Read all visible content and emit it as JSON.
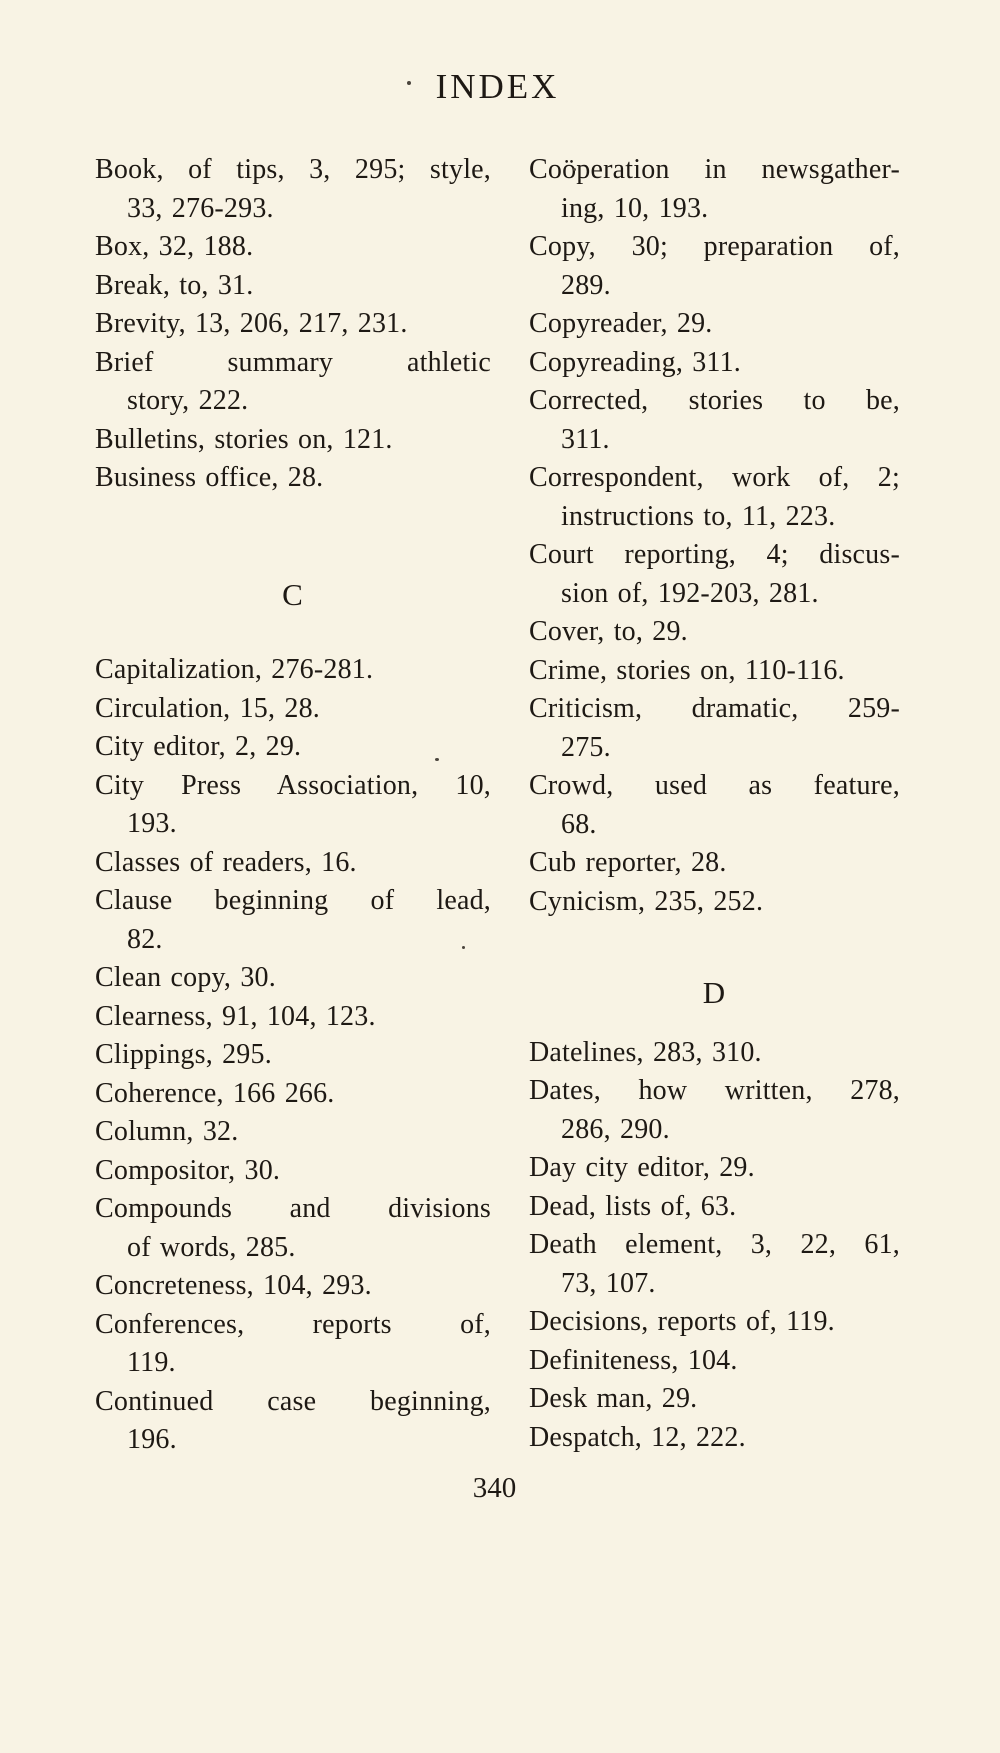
{
  "page": {
    "title": "INDEX",
    "page_number": "340"
  },
  "index": {
    "columns": [
      {
        "id": "left",
        "sections": [
          {
            "heading": "",
            "entries": [
              [
                "Book, of tips, 3, 295; style,",
                "33, 276-293."
              ],
              [
                "Box, 32, 188."
              ],
              [
                "Break, to, 31."
              ],
              [
                "Brevity, 13, 206, 217, 231."
              ],
              [
                "Brief summary athletic",
                "story, 222."
              ],
              [
                "Bulletins, stories on, 121."
              ],
              [
                "Business office, 28."
              ]
            ]
          },
          {
            "heading": "C",
            "entries": [
              [
                "Capitalization, 276-281."
              ],
              [
                "Circulation, 15, 28."
              ],
              [
                "City editor, 2, 29."
              ],
              [
                "City Press Association, 10,",
                "193."
              ],
              [
                "Classes of readers, 16."
              ],
              [
                "Clause beginning of lead,",
                "82."
              ],
              [
                "Clean copy, 30."
              ],
              [
                "Clearness, 91, 104, 123."
              ],
              [
                "Clippings, 295."
              ],
              [
                "Coherence, 166 266."
              ],
              [
                "Column, 32."
              ],
              [
                "Compositor, 30."
              ],
              [
                "Compounds and divisions",
                "of words, 285."
              ],
              [
                "Concreteness, 104, 293."
              ],
              [
                "Conferences, reports of,",
                "119."
              ],
              [
                "Continued case beginning,",
                "196."
              ]
            ]
          }
        ]
      },
      {
        "id": "right",
        "sections": [
          {
            "heading": "",
            "entries": [
              [
                "Coöperation in newsgather-",
                "ing, 10, 193."
              ],
              [
                "Copy, 30; preparation of,",
                "289."
              ],
              [
                "Copyreader, 29."
              ],
              [
                "Copyreading, 311."
              ],
              [
                "Corrected, stories to be,",
                "311."
              ],
              [
                "Correspondent, work of, 2;",
                "instructions to, 11, 223."
              ],
              [
                "Court reporting, 4; discus-",
                "sion of, 192-203, 281."
              ],
              [
                "Cover, to, 29."
              ],
              [
                "Crime, stories on, 110-116."
              ],
              [
                "Criticism, dramatic, 259-",
                "275."
              ],
              [
                "Crowd, used as feature,",
                "68."
              ],
              [
                "Cub reporter, 28."
              ],
              [
                "Cynicism, 235, 252."
              ]
            ]
          },
          {
            "heading": "D",
            "entries": [
              [
                "Datelines, 283, 310."
              ],
              [
                "Dates, how written, 278,",
                "286, 290."
              ],
              [
                "Day city editor, 29."
              ],
              [
                "Dead, lists of, 63."
              ],
              [
                "Death element, 3, 22, 61,",
                "73, 107."
              ],
              [
                "Decisions, reports of, 119."
              ],
              [
                "Definiteness, 104."
              ],
              [
                "Desk man, 29."
              ],
              [
                "Despatch, 12, 222."
              ]
            ]
          }
        ]
      }
    ]
  }
}
